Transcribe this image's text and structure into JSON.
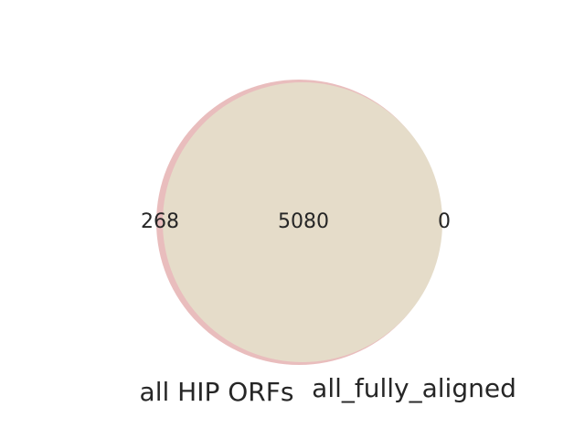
{
  "chart_data": {
    "type": "venn",
    "sets": [
      {
        "name": "all HIP ORFs",
        "only": 268,
        "color": "#e8b9b9"
      },
      {
        "name": "all_fully_aligned",
        "only": 0,
        "color": "#e5dcc8"
      }
    ],
    "intersection": 5080,
    "overlap_color": "#e5dcc9"
  }
}
